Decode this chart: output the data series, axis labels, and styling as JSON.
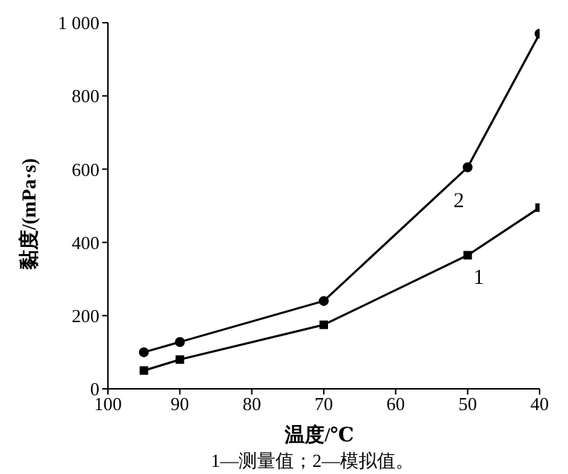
{
  "chart_data": {
    "type": "line",
    "xlabel": "温度/℃",
    "ylabel": "黏度/(mPa·s)",
    "x": [
      95,
      90,
      70,
      50,
      40
    ],
    "xlim": [
      100,
      40
    ],
    "xticks": [
      100,
      90,
      80,
      70,
      60,
      50,
      40
    ],
    "ylim": [
      0,
      1000
    ],
    "yticks": [
      0,
      200,
      400,
      600,
      800,
      {
        "value": 1000,
        "label": "1 000"
      }
    ],
    "grid": false,
    "legend": false,
    "line_style": "solid",
    "series": [
      {
        "name": "2",
        "color": "#000000",
        "marker": "circle",
        "values": [
          100,
          128,
          240,
          605,
          970
        ]
      },
      {
        "name": "1",
        "color": "#000000",
        "marker": "square",
        "values": [
          50,
          80,
          175,
          365,
          495
        ]
      }
    ],
    "annotations": [
      "1—测量值；2—模拟值。"
    ]
  }
}
